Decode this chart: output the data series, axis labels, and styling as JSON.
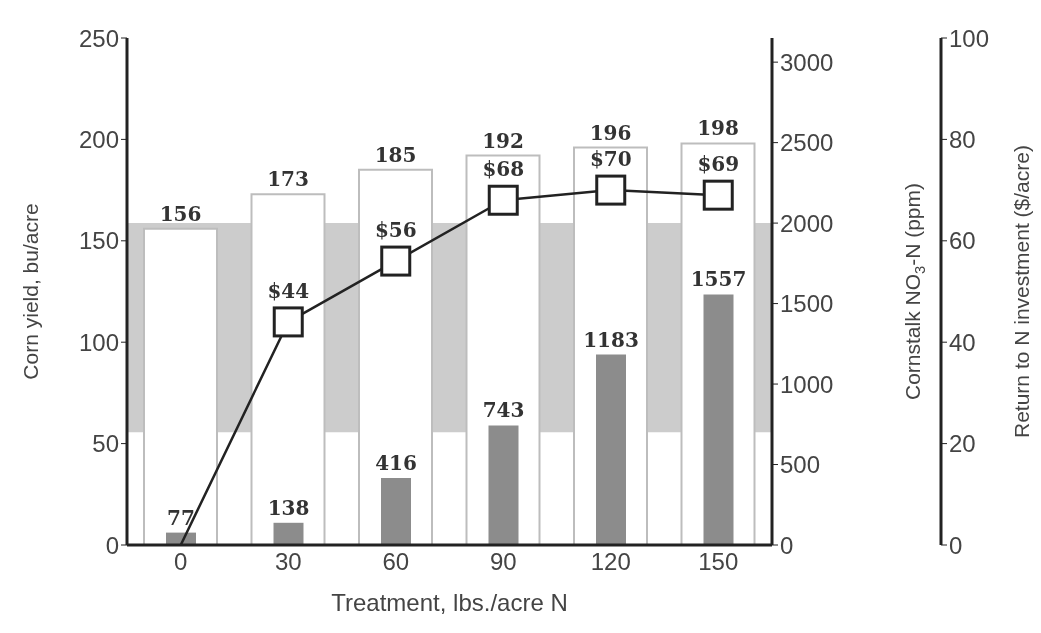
{
  "chart_data": {
    "type": "bar",
    "xlabel": "Treatment, lbs./acre N",
    "ylabel": "Corn yield, bu/acre",
    "y2label": "Cornstalk NO$_{3}$-N (ppm)",
    "y3label": "Return to N investment ($/acre)",
    "categories": [
      "0",
      "30",
      "60",
      "90",
      "120",
      "150"
    ],
    "series": [
      {
        "name": null,
        "axis": "y",
        "color": "#ffffff",
        "values": [
          156,
          173,
          185,
          192,
          196,
          198
        ]
      },
      {
        "name": null,
        "axis": "y2",
        "color": "#8c8c8c",
        "values": [
          77,
          138,
          416,
          743,
          1183,
          1557
        ]
      },
      {
        "name": null,
        "type": "line",
        "axis": "y3",
        "color": "#222222",
        "values": [
          0,
          44,
          56,
          68,
          70,
          69
        ],
        "value_labels": [
          null,
          "$44",
          "$56",
          "$68",
          "$70",
          "$69"
        ]
      }
    ],
    "data_labels": true,
    "marker": "square",
    "grid": false,
    "ylim": [
      0,
      250
    ],
    "yticks": [
      0,
      50,
      100,
      150,
      200,
      250
    ],
    "y2lim": [
      0,
      3150
    ],
    "y2ticks": [
      0,
      500,
      1000,
      1500,
      2000,
      2500,
      3000
    ],
    "y3lim": [
      0,
      100
    ],
    "y3ticks": [
      0,
      20,
      40,
      60,
      80,
      100
    ],
    "bands": [
      {
        "axis": "y2",
        "from": 700,
        "to": 2000,
        "color": "#cccccc"
      }
    ]
  }
}
